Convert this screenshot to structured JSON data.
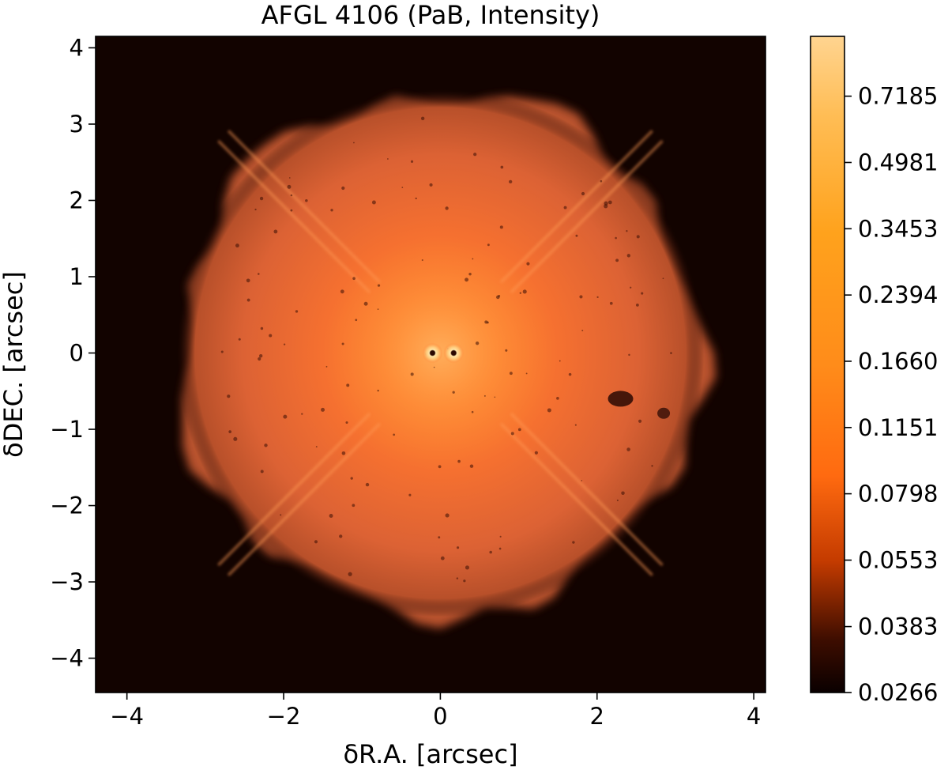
{
  "chart_data": {
    "type": "heatmap",
    "title": "AFGL 4106 (PaB, Intensity)",
    "xlabel": "δR.A. [arcsec]",
    "ylabel": "δDEC. [arcsec]",
    "xlim": [
      -4.4,
      4.15
    ],
    "ylim": [
      -4.45,
      4.15
    ],
    "x_ticks": [
      -4,
      -2,
      0,
      2,
      4
    ],
    "x_tick_labels": [
      "−4",
      "−2",
      "0",
      "2",
      "4"
    ],
    "y_ticks": [
      4,
      3,
      2,
      1,
      0,
      -1,
      -2,
      -3,
      -4
    ],
    "y_tick_labels": [
      "4",
      "3",
      "2",
      "1",
      "0",
      "−1",
      "−2",
      "−3",
      "−4"
    ],
    "grid": false,
    "colormap": "copper-orange",
    "colormap_colors": [
      "#0a0000",
      "#3d0d00",
      "#c43b00",
      "#ff6a10",
      "#ff8c1a",
      "#ffa21c",
      "#ffc060",
      "#ffd490"
    ],
    "colorbar": {
      "position": "right",
      "scale": "log",
      "ticks": [
        0.7185,
        0.4981,
        0.3453,
        0.2394,
        0.166,
        0.1151,
        0.0798,
        0.0553,
        0.0383,
        0.0266
      ],
      "tick_labels": [
        "0.7185",
        "0.4981",
        "0.3453",
        "0.2394",
        "0.1660",
        "0.1151",
        "0.0798",
        "0.0553",
        "0.0383",
        "0.0266"
      ],
      "vmin": 0.0266,
      "vmax": 1.0
    },
    "features": {
      "nebula_center": [
        0.0,
        0.0
      ],
      "nebula_radius_arcsec": 3.3,
      "binary_stars": [
        [
          -0.1,
          0.0
        ],
        [
          0.17,
          0.0
        ]
      ],
      "diffraction_spike_angles_deg": [
        45,
        135
      ]
    }
  }
}
